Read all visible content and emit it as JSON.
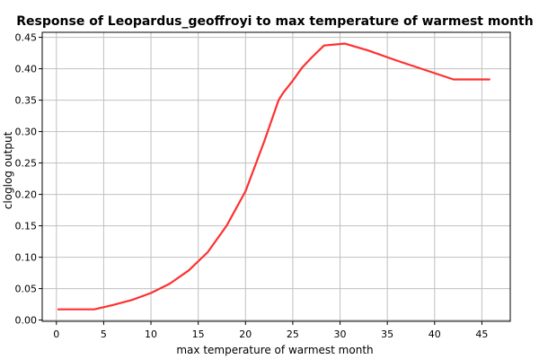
{
  "chart_data": {
    "type": "line",
    "title": "Response of Leopardus_geoffroyi to max temperature of warmest month",
    "xlabel": "max temperature of warmest month",
    "ylabel": "cloglog output",
    "xlim": [
      -1.5,
      48
    ],
    "ylim": [
      -0.002,
      0.458
    ],
    "x_ticks": [
      "0",
      "5",
      "10",
      "15",
      "20",
      "25",
      "30",
      "35",
      "40",
      "45"
    ],
    "y_ticks": [
      "0.00",
      "0.05",
      "0.10",
      "0.15",
      "0.20",
      "0.25",
      "0.30",
      "0.35",
      "0.40",
      "0.45"
    ],
    "grid": true,
    "series": [
      {
        "color": "#ff3030",
        "x": [
          0.2,
          4,
          6,
          8,
          10,
          12,
          14,
          16,
          18,
          20,
          22,
          23.5,
          24,
          25,
          26,
          27,
          28.3,
          30.5,
          33,
          36,
          40,
          42,
          45.8
        ],
        "y": [
          0.017,
          0.017,
          0.024,
          0.032,
          0.043,
          0.058,
          0.079,
          0.108,
          0.15,
          0.205,
          0.285,
          0.35,
          0.362,
          0.381,
          0.402,
          0.418,
          0.437,
          0.44,
          0.429,
          0.413,
          0.393,
          0.383,
          0.383
        ]
      }
    ]
  }
}
